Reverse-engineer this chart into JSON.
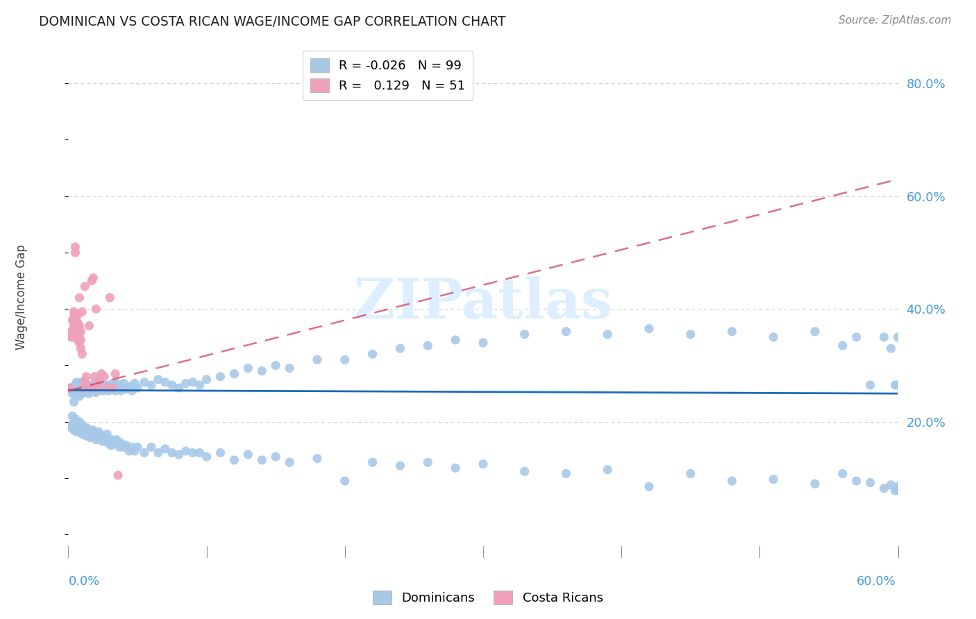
{
  "title": "DOMINICAN VS COSTA RICAN WAGE/INCOME GAP CORRELATION CHART",
  "source": "Source: ZipAtlas.com",
  "ylabel": "Wage/Income Gap",
  "right_yticks": [
    20.0,
    40.0,
    60.0,
    80.0
  ],
  "xlim": [
    0.0,
    0.6
  ],
  "ylim": [
    -0.04,
    0.86
  ],
  "legend_blue_R": "-0.026",
  "legend_blue_N": "99",
  "legend_pink_R": "0.129",
  "legend_pink_N": "51",
  "dominicans_color": "#a8c8e8",
  "costa_ricans_color": "#f0a0b8",
  "trend_blue_color": "#1a6bb5",
  "trend_pink_color": "#d04060",
  "grid_color": "#cccccc",
  "title_color": "#222222",
  "axis_label_color": "#4499dd",
  "right_axis_color": "#4499dd",
  "watermark_color": "#ddeeff",
  "dom_x": [
    0.002,
    0.003,
    0.003,
    0.004,
    0.004,
    0.005,
    0.005,
    0.006,
    0.006,
    0.006,
    0.007,
    0.007,
    0.008,
    0.008,
    0.008,
    0.009,
    0.009,
    0.01,
    0.01,
    0.01,
    0.011,
    0.011,
    0.012,
    0.012,
    0.013,
    0.013,
    0.014,
    0.014,
    0.015,
    0.015,
    0.016,
    0.016,
    0.017,
    0.018,
    0.018,
    0.019,
    0.02,
    0.021,
    0.022,
    0.022,
    0.023,
    0.024,
    0.025,
    0.026,
    0.027,
    0.028,
    0.029,
    0.03,
    0.031,
    0.032,
    0.034,
    0.035,
    0.037,
    0.038,
    0.04,
    0.042,
    0.044,
    0.046,
    0.048,
    0.05,
    0.055,
    0.06,
    0.065,
    0.07,
    0.075,
    0.08,
    0.085,
    0.09,
    0.095,
    0.1,
    0.11,
    0.12,
    0.13,
    0.14,
    0.15,
    0.16,
    0.18,
    0.2,
    0.22,
    0.24,
    0.26,
    0.28,
    0.3,
    0.33,
    0.36,
    0.39,
    0.42,
    0.45,
    0.48,
    0.51,
    0.54,
    0.56,
    0.57,
    0.58,
    0.59,
    0.595,
    0.598,
    0.6,
    0.6
  ],
  "dom_y": [
    0.26,
    0.26,
    0.25,
    0.255,
    0.235,
    0.265,
    0.255,
    0.26,
    0.25,
    0.27,
    0.26,
    0.265,
    0.255,
    0.245,
    0.265,
    0.26,
    0.27,
    0.255,
    0.265,
    0.25,
    0.26,
    0.27,
    0.255,
    0.265,
    0.258,
    0.268,
    0.255,
    0.265,
    0.26,
    0.25,
    0.262,
    0.255,
    0.26,
    0.265,
    0.255,
    0.268,
    0.252,
    0.26,
    0.256,
    0.27,
    0.262,
    0.268,
    0.255,
    0.258,
    0.262,
    0.265,
    0.255,
    0.262,
    0.258,
    0.268,
    0.255,
    0.268,
    0.26,
    0.255,
    0.268,
    0.258,
    0.262,
    0.255,
    0.268,
    0.26,
    0.27,
    0.265,
    0.275,
    0.27,
    0.265,
    0.26,
    0.268,
    0.27,
    0.265,
    0.275,
    0.28,
    0.285,
    0.295,
    0.29,
    0.3,
    0.295,
    0.31,
    0.31,
    0.32,
    0.33,
    0.335,
    0.345,
    0.34,
    0.355,
    0.36,
    0.355,
    0.365,
    0.355,
    0.36,
    0.35,
    0.36,
    0.335,
    0.35,
    0.265,
    0.35,
    0.33,
    0.265,
    0.35,
    0.265
  ],
  "dom_y_low": [
    0.19,
    0.21,
    0.195,
    0.2,
    0.185,
    0.195,
    0.205,
    0.188,
    0.198,
    0.182,
    0.192,
    0.185,
    0.2,
    0.188,
    0.195,
    0.182,
    0.192,
    0.188,
    0.178,
    0.195,
    0.185,
    0.192,
    0.178,
    0.188,
    0.182,
    0.175,
    0.188,
    0.178,
    0.185,
    0.175,
    0.182,
    0.172,
    0.178,
    0.185,
    0.175,
    0.182,
    0.168,
    0.178,
    0.172,
    0.182,
    0.168,
    0.175,
    0.165,
    0.172,
    0.168,
    0.178,
    0.162,
    0.168,
    0.158,
    0.168,
    0.162,
    0.168,
    0.155,
    0.162,
    0.155,
    0.158,
    0.148,
    0.155,
    0.148,
    0.155,
    0.145,
    0.155,
    0.145,
    0.152,
    0.145,
    0.142,
    0.148,
    0.145,
    0.145,
    0.138,
    0.145,
    0.132,
    0.142,
    0.132,
    0.138,
    0.128,
    0.135,
    0.095,
    0.128,
    0.122,
    0.128,
    0.118,
    0.125,
    0.112,
    0.108,
    0.115,
    0.085,
    0.108,
    0.095,
    0.098,
    0.09,
    0.108,
    0.095,
    0.092,
    0.082,
    0.088,
    0.078,
    0.085,
    0.078
  ],
  "cr_x": [
    0.001,
    0.002,
    0.002,
    0.003,
    0.003,
    0.004,
    0.004,
    0.004,
    0.004,
    0.005,
    0.005,
    0.005,
    0.005,
    0.005,
    0.006,
    0.006,
    0.006,
    0.006,
    0.007,
    0.007,
    0.007,
    0.007,
    0.008,
    0.008,
    0.008,
    0.008,
    0.009,
    0.009,
    0.009,
    0.01,
    0.01,
    0.011,
    0.012,
    0.012,
    0.013,
    0.014,
    0.015,
    0.016,
    0.017,
    0.018,
    0.019,
    0.02,
    0.021,
    0.022,
    0.024,
    0.026,
    0.028,
    0.03,
    0.032,
    0.034,
    0.036
  ],
  "cr_y": [
    0.26,
    0.35,
    0.36,
    0.35,
    0.38,
    0.355,
    0.37,
    0.385,
    0.395,
    0.365,
    0.375,
    0.39,
    0.5,
    0.51,
    0.355,
    0.365,
    0.375,
    0.355,
    0.345,
    0.36,
    0.375,
    0.39,
    0.34,
    0.355,
    0.37,
    0.42,
    0.33,
    0.345,
    0.36,
    0.32,
    0.395,
    0.26,
    0.27,
    0.44,
    0.28,
    0.265,
    0.37,
    0.26,
    0.45,
    0.455,
    0.28,
    0.4,
    0.26,
    0.27,
    0.285,
    0.28,
    0.26,
    0.42,
    0.26,
    0.285,
    0.105
  ]
}
